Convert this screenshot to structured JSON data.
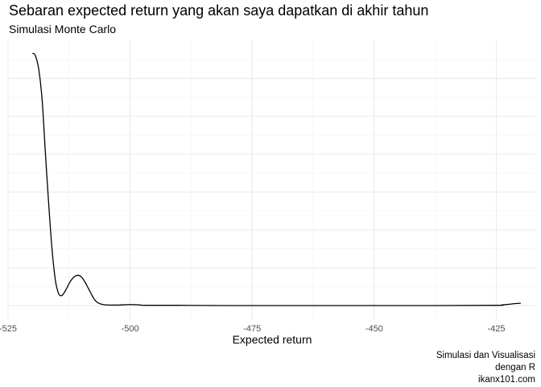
{
  "chart_data": {
    "type": "area",
    "title": "Sebaran expected return yang akan saya dapatkan di akhir tahun",
    "subtitle": "Simulasi Monte Carlo",
    "xlabel": "Expected return",
    "ylabel": "",
    "caption": [
      "Simulasi dan Visualisasi",
      "dengan R",
      "ikanx101.com"
    ],
    "xlim": [
      -525,
      -417
    ],
    "ylim": [
      0,
      1
    ],
    "x_ticks": [
      -525,
      -500,
      -475,
      -450,
      -425
    ],
    "x_tick_labels": [
      "-525",
      "-500",
      "-475",
      "-450",
      "-425"
    ],
    "y_ticks_visible": false,
    "grid": true,
    "legend": "none",
    "series": [
      {
        "color": "#000000",
        "x": [
          -520.0,
          -519.4,
          -518.7,
          -518.0,
          -517.4,
          -516.7,
          -516.0,
          -515.3,
          -514.7,
          -514.2,
          -513.7,
          -513.0,
          -512.3,
          -511.5,
          -510.7,
          -510.0,
          -509.3,
          -508.6,
          -507.9,
          -507.3,
          -506.6,
          -505.5,
          -504.2,
          -502.5,
          -500.0,
          -498.3,
          -497.0,
          -490.0,
          -480.0,
          -460.0,
          -440.0,
          -425.0,
          -424.0,
          -423.0,
          -422.0,
          -421.0,
          -420.0
        ],
        "y": [
          1.0,
          0.99,
          0.935,
          0.81,
          0.62,
          0.41,
          0.225,
          0.1,
          0.05,
          0.039,
          0.045,
          0.068,
          0.094,
          0.113,
          0.12,
          0.114,
          0.095,
          0.07,
          0.044,
          0.024,
          0.011,
          0.004,
          0.002,
          0.002,
          0.004,
          0.003,
          0.001,
          0.001,
          0.0,
          0.0,
          0.0,
          0.001,
          0.002,
          0.004,
          0.006,
          0.008,
          0.009
        ]
      }
    ]
  }
}
